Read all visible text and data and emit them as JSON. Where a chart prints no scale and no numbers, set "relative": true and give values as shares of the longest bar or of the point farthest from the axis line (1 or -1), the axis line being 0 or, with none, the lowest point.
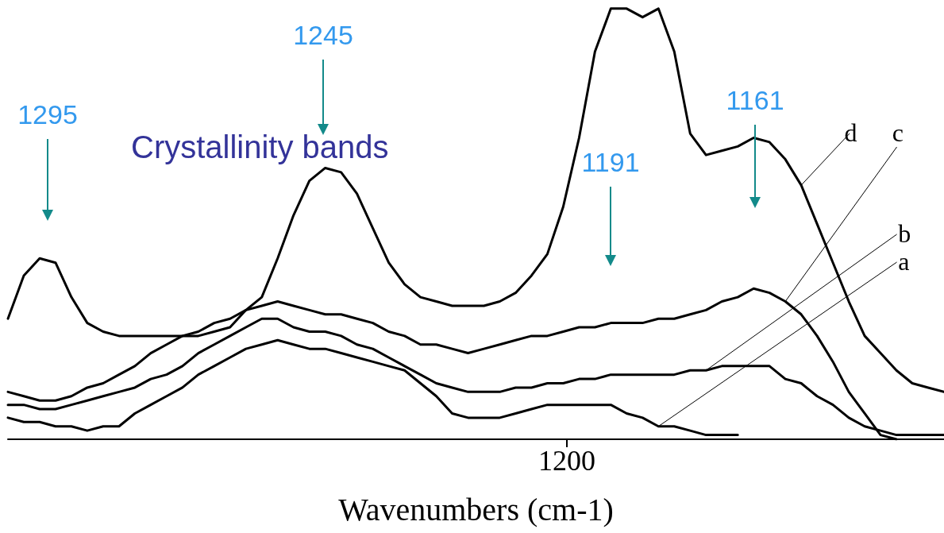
{
  "chart_data": {
    "type": "line",
    "relative": true,
    "xlabel": "Wavenumbers (cm-1)",
    "tick_labels": false,
    "grid": false,
    "legend": "right",
    "marker": "none",
    "line_style": "solid",
    "categories": [
      null,
      null,
      null,
      null,
      null,
      null,
      null,
      null,
      null,
      null,
      null,
      null,
      null,
      null,
      null,
      null,
      null,
      null,
      null,
      null,
      null,
      null,
      null,
      null,
      null,
      null,
      null,
      null,
      null,
      null,
      null,
      null,
      null,
      null,
      null,
      null,
      null,
      null,
      null,
      null,
      null,
      null,
      null,
      null,
      null,
      null,
      null,
      null,
      null,
      null,
      null,
      null,
      null,
      null,
      null,
      null,
      null,
      null,
      null,
      null
    ],
    "annotations": [
      "1295",
      "1245",
      "1191",
      "1161",
      "1200",
      "Crystallinity bands"
    ],
    "series": [
      {
        "name": "a",
        "color": "#000000",
        "values": [
          0.05,
          0.04,
          0.04,
          0.03,
          0.03,
          0.02,
          0.03,
          0.03,
          0.06,
          0.08,
          0.1,
          0.12,
          0.15,
          0.17,
          0.19,
          0.21,
          0.22,
          0.23,
          0.22,
          0.21,
          0.21,
          0.2,
          0.19,
          0.18,
          0.17,
          0.16,
          0.13,
          0.1,
          0.06,
          0.05,
          0.05,
          0.05,
          0.06,
          0.07,
          0.08,
          0.08,
          0.08,
          0.08,
          0.08,
          0.06,
          0.05,
          0.03,
          0.03,
          0.02,
          0.01,
          0.01,
          0.01,
          null,
          null,
          null,
          null,
          null,
          null,
          null,
          null,
          null,
          null,
          null,
          null,
          null
        ]
      },
      {
        "name": "b",
        "color": "#000000",
        "values": [
          0.08,
          0.08,
          0.07,
          0.07,
          0.08,
          0.09,
          0.1,
          0.11,
          0.12,
          0.14,
          0.15,
          0.17,
          0.2,
          0.22,
          0.24,
          0.26,
          0.28,
          0.28,
          0.26,
          0.25,
          0.25,
          0.24,
          0.22,
          0.21,
          0.19,
          0.17,
          0.15,
          0.13,
          0.12,
          0.11,
          0.11,
          0.11,
          0.12,
          0.12,
          0.13,
          0.13,
          0.14,
          0.14,
          0.15,
          0.15,
          0.15,
          0.15,
          0.15,
          0.16,
          0.16,
          0.17,
          0.17,
          0.17,
          0.17,
          0.14,
          0.13,
          0.1,
          0.08,
          0.05,
          0.03,
          0.02,
          0.01,
          0.01,
          0.01,
          0.01
        ]
      },
      {
        "name": "c",
        "color": "#000000",
        "values": [
          0.11,
          0.1,
          0.09,
          0.09,
          0.1,
          0.12,
          0.13,
          0.15,
          0.17,
          0.2,
          0.22,
          0.24,
          0.25,
          0.27,
          0.28,
          0.3,
          0.31,
          0.32,
          0.31,
          0.3,
          0.29,
          0.29,
          0.28,
          0.27,
          0.25,
          0.24,
          0.22,
          0.22,
          0.21,
          0.2,
          0.21,
          0.22,
          0.23,
          0.24,
          0.24,
          0.25,
          0.26,
          0.26,
          0.27,
          0.27,
          0.27,
          0.28,
          0.28,
          0.29,
          0.3,
          0.32,
          0.33,
          0.35,
          0.34,
          0.32,
          0.29,
          0.24,
          0.18,
          0.11,
          0.06,
          0.01,
          0,
          null,
          null,
          null
        ]
      },
      {
        "name": "d",
        "color": "#000000",
        "values": [
          0.28,
          0.38,
          0.42,
          0.41,
          0.33,
          0.27,
          0.25,
          0.24,
          0.24,
          0.24,
          0.24,
          0.24,
          0.24,
          0.25,
          0.26,
          0.3,
          0.33,
          0.42,
          0.52,
          0.6,
          0.63,
          0.62,
          0.57,
          0.49,
          0.41,
          0.36,
          0.33,
          0.32,
          0.31,
          0.31,
          0.31,
          0.32,
          0.34,
          0.38,
          0.43,
          0.54,
          0.7,
          0.9,
          1.0,
          1.0,
          0.98,
          1.0,
          0.9,
          0.71,
          0.66,
          0.67,
          0.68,
          0.7,
          0.69,
          0.65,
          0.59,
          0.5,
          0.41,
          0.32,
          0.24,
          0.2,
          0.16,
          0.13,
          0.12,
          0.11
        ]
      }
    ]
  }
}
